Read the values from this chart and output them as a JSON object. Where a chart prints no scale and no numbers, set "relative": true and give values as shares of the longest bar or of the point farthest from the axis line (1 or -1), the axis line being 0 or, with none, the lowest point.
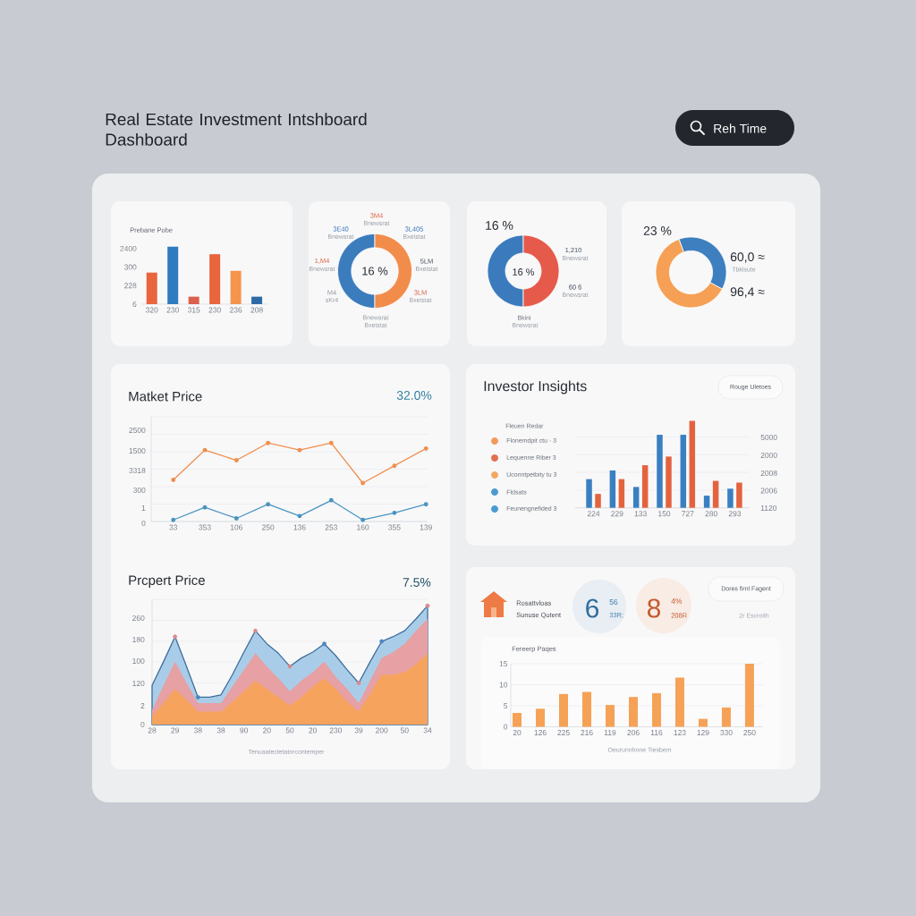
{
  "chart_data": [
    {
      "type": "other",
      "title": "Real Estate Investment Intshboard Dashboard",
      "annotations": [
        "Reh Time"
      ]
    },
    {
      "type": "bar",
      "title": "Prebane Pobe",
      "relative": true,
      "annotations": [
        "6",
        "228",
        "300",
        "2400"
      ],
      "categories": [
        "320",
        "230",
        "315",
        "230",
        "236",
        "208"
      ],
      "values": [
        0.55,
        1.0,
        0.13,
        0.87,
        0.58,
        0.13
      ],
      "colors": [
        "#e8653e",
        "#2f7bbf",
        "#dc5f4c",
        "#e8653e",
        "#f5944c",
        "#2e6aa6"
      ]
    },
    {
      "type": "donut",
      "categories": [
        null,
        null
      ],
      "values": [
        50,
        50
      ],
      "colors": [
        "#3b7cbd",
        "#f28c4b"
      ],
      "annotations": [
        "16 %",
        "3M4",
        "Bnewsrat",
        "3E40",
        "Bnewsrat",
        "3L405",
        "Bxetstat",
        "1,M4",
        "Bnewsrat",
        "5LM",
        "Bxetstat",
        "3LM",
        "Bxetstat",
        "M4",
        "sKr4",
        "Bnewsrat",
        "Bxetstat"
      ]
    },
    {
      "type": "donut",
      "title": "16 %",
      "categories": [
        null,
        null
      ],
      "values": [
        50,
        50
      ],
      "colors": [
        "#3b7bbd",
        "#e55a4b"
      ],
      "annotations": [
        "16 %",
        "1,210",
        "Bnewsrat",
        "60 6",
        "Bnewsrat",
        "Bkini",
        "Bnewsrat"
      ]
    },
    {
      "type": "donut",
      "title": "23 %",
      "categories": [
        "Tbklsute",
        null
      ],
      "values": [
        60.0,
        96.4
      ],
      "value_labels": [
        "60,0 ≈",
        "96,4 ≈"
      ],
      "colors": [
        "#3d7fbf",
        "#f5a055"
      ]
    },
    {
      "type": "line",
      "title": "Matket Price",
      "relative": true,
      "annotations": [
        "32.0%",
        "0",
        "1",
        "300",
        "3318",
        "1500",
        "2500"
      ],
      "categories": [
        "33",
        "353",
        "106",
        "250",
        "136",
        "253",
        "160",
        "355",
        "139"
      ],
      "series": [
        {
          "color": "#ef8f4f",
          "values": [
            0.53,
            0.91,
            0.78,
            1.0,
            0.91,
            1.0,
            0.49,
            0.71,
            0.93
          ]
        },
        {
          "color": "#4a95c0",
          "values": [
            0.02,
            0.18,
            0.04,
            0.22,
            0.07,
            0.27,
            0.02,
            0.11,
            0.22
          ]
        }
      ],
      "grid": "y",
      "marker": "circle"
    },
    {
      "type": "bar",
      "title": "Investor Insights",
      "relative": true,
      "annotations": [
        "Rouge Uletoes",
        "Fleuen Redar",
        "Flonemdpit ctu - 3",
        "Lequenne Riber 3",
        "Uconntpetbity tu 3",
        "Fldsats",
        "Feunengnefided 3",
        "1120",
        "2006",
        "2008",
        "2000",
        "5000"
      ],
      "categories": [
        "224",
        "229",
        "133",
        "150",
        "727",
        "280",
        "293"
      ],
      "series": [
        {
          "color": "#3a7fc1",
          "values": [
            0.33,
            0.43,
            0.24,
            0.84,
            0.84,
            0.14,
            0.22
          ]
        },
        {
          "color": "#e4633f",
          "values": [
            0.16,
            0.33,
            0.49,
            0.59,
            1.0,
            0.31,
            0.29
          ]
        }
      ],
      "grid": "y"
    },
    {
      "type": "area",
      "title": "Prcpert Price",
      "relative": true,
      "annotations": [
        "7.5%",
        "0",
        "2",
        "120",
        "100",
        "180",
        "260"
      ],
      "xlabel": "Tenuaatectetatorcontemper",
      "categories": [
        "28",
        null,
        "29",
        null,
        "38",
        null,
        "38",
        null,
        "90",
        null,
        "20",
        null,
        "50",
        null,
        "20",
        null,
        "230",
        null,
        "39",
        null,
        "200",
        null,
        "50",
        null,
        "34"
      ],
      "grid": "y",
      "series": [
        {
          "color": "#a9cde8",
          "values": [
            0.33,
            0.53,
            0.74,
            0.49,
            0.23,
            0.23,
            0.25,
            0.42,
            0.61,
            0.79,
            0.68,
            0.6,
            0.49,
            0.56,
            0.61,
            0.68,
            0.58,
            0.46,
            0.35,
            0.53,
            0.7,
            0.74,
            0.79,
            0.89,
            1.0
          ]
        },
        {
          "color": "#e7a0a3",
          "values": [
            0.12,
            0.33,
            0.53,
            0.35,
            0.18,
            0.18,
            0.18,
            0.32,
            0.46,
            0.6,
            0.49,
            0.39,
            0.28,
            0.37,
            0.44,
            0.53,
            0.4,
            0.3,
            0.18,
            0.37,
            0.56,
            0.61,
            0.68,
            0.79,
            0.89
          ]
        },
        {
          "color": "#f6a35e",
          "values": [
            0.07,
            0.18,
            0.3,
            0.21,
            0.11,
            0.11,
            0.11,
            0.19,
            0.28,
            0.37,
            0.3,
            0.23,
            0.16,
            0.23,
            0.32,
            0.39,
            0.3,
            0.19,
            0.11,
            0.26,
            0.42,
            0.42,
            0.44,
            0.51,
            0.6
          ]
        },
        {
          "type": "scatter",
          "color": "#4a86bf",
          "marker": "circle",
          "values": [
            null,
            null,
            0.74,
            null,
            0.23,
            null,
            null,
            null,
            null,
            0.79,
            null,
            null,
            0.49,
            null,
            null,
            0.68,
            null,
            null,
            0.35,
            null,
            0.7,
            null,
            null,
            null,
            1.0
          ],
          "colors": [
            null,
            null,
            "#d98a8f",
            null,
            "#4a86bf",
            null,
            null,
            null,
            null,
            "#d98a8f",
            null,
            null,
            "#d98a8f",
            null,
            null,
            "#4a86bf",
            null,
            null,
            "#d98a8f",
            null,
            "#4a86bf",
            null,
            null,
            null,
            "#d98a8f"
          ]
        }
      ]
    },
    {
      "type": "other",
      "annotations": [
        "Rosattvloas",
        "Sunuse Qotent",
        "6",
        "56",
        "33R;",
        "8",
        "4%",
        "208R",
        "Dores firnl Fagent",
        "2r Escroith"
      ]
    },
    {
      "type": "bar",
      "title": "Fereerp Paqes",
      "xlabel": "Oeurunohone Tiesbem",
      "categories": [
        "20",
        "126",
        "225",
        "216",
        "119",
        "206",
        "116",
        "123",
        "129",
        "330",
        "250"
      ],
      "values": [
        3.3,
        4.3,
        7.8,
        8.3,
        5.2,
        7.1,
        8.0,
        11.7,
        1.9,
        4.6,
        15.0
      ],
      "color": "#f5a257",
      "ylim": [
        0,
        15
      ],
      "yticks": [
        0,
        5,
        10,
        15
      ],
      "grid": "y"
    }
  ]
}
